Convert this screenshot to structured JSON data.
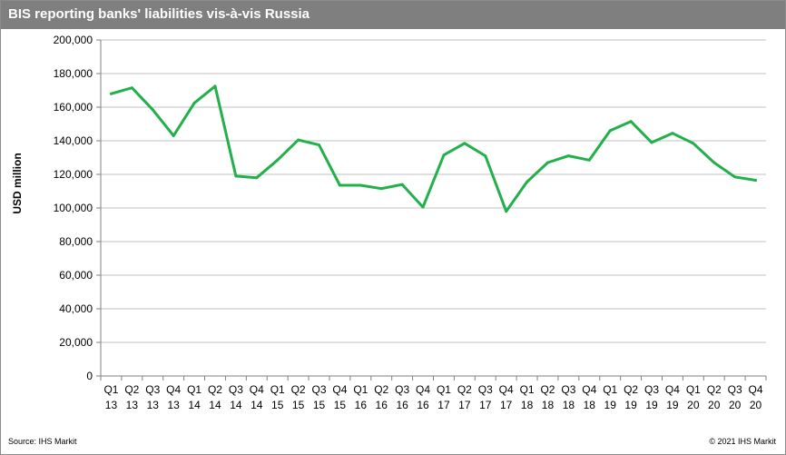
{
  "header": {
    "title": "BIS reporting banks' liabilities  vis-à-vis Russia"
  },
  "footer": {
    "source": "Source:  IHS Markit",
    "copyright": "© 2021  IHS Markit"
  },
  "colors": {
    "title_bar": "#7f7f7f",
    "line": "#22b04b",
    "grid": "#c0c0c0"
  },
  "chart_data": {
    "type": "line",
    "title": "BIS reporting banks' liabilities  vis-à-vis Russia",
    "xlabel": "",
    "ylabel": "USD million",
    "ylim": [
      0,
      200000
    ],
    "yticks": [
      0,
      20000,
      40000,
      60000,
      80000,
      100000,
      120000,
      140000,
      160000,
      180000,
      200000
    ],
    "ytick_labels": [
      "0",
      "20,000",
      "40,000",
      "60,000",
      "80,000",
      "100,000",
      "120,000",
      "140,000",
      "160,000",
      "180,000",
      "200,000"
    ],
    "grid": true,
    "legend": "none",
    "categories": [
      [
        "Q1",
        "13"
      ],
      [
        "Q2",
        "13"
      ],
      [
        "Q3",
        "13"
      ],
      [
        "Q4",
        "13"
      ],
      [
        "Q1",
        "14"
      ],
      [
        "Q2",
        "14"
      ],
      [
        "Q3",
        "14"
      ],
      [
        "Q4",
        "14"
      ],
      [
        "Q1",
        "15"
      ],
      [
        "Q2",
        "15"
      ],
      [
        "Q3",
        "15"
      ],
      [
        "Q4",
        "15"
      ],
      [
        "Q1",
        "16"
      ],
      [
        "Q2",
        "16"
      ],
      [
        "Q3",
        "16"
      ],
      [
        "Q4",
        "16"
      ],
      [
        "Q1",
        "17"
      ],
      [
        "Q2",
        "17"
      ],
      [
        "Q3",
        "17"
      ],
      [
        "Q4",
        "17"
      ],
      [
        "Q1",
        "18"
      ],
      [
        "Q2",
        "18"
      ],
      [
        "Q3",
        "18"
      ],
      [
        "Q4",
        "18"
      ],
      [
        "Q1",
        "19"
      ],
      [
        "Q2",
        "19"
      ],
      [
        "Q3",
        "19"
      ],
      [
        "Q4",
        "19"
      ],
      [
        "Q1",
        "20"
      ],
      [
        "Q2",
        "20"
      ],
      [
        "Q3",
        "20"
      ],
      [
        "Q4",
        "20"
      ]
    ],
    "series": [
      {
        "values": [
          168000,
          171500,
          158500,
          143000,
          162500,
          172500,
          119000,
          118000,
          128500,
          140500,
          137500,
          113500,
          113500,
          111500,
          114000,
          100500,
          131500,
          138500,
          131000,
          98000,
          115500,
          127000,
          131000,
          128500,
          146000,
          151500,
          139000,
          144500,
          138500,
          127000,
          118500,
          116500
        ]
      }
    ]
  }
}
